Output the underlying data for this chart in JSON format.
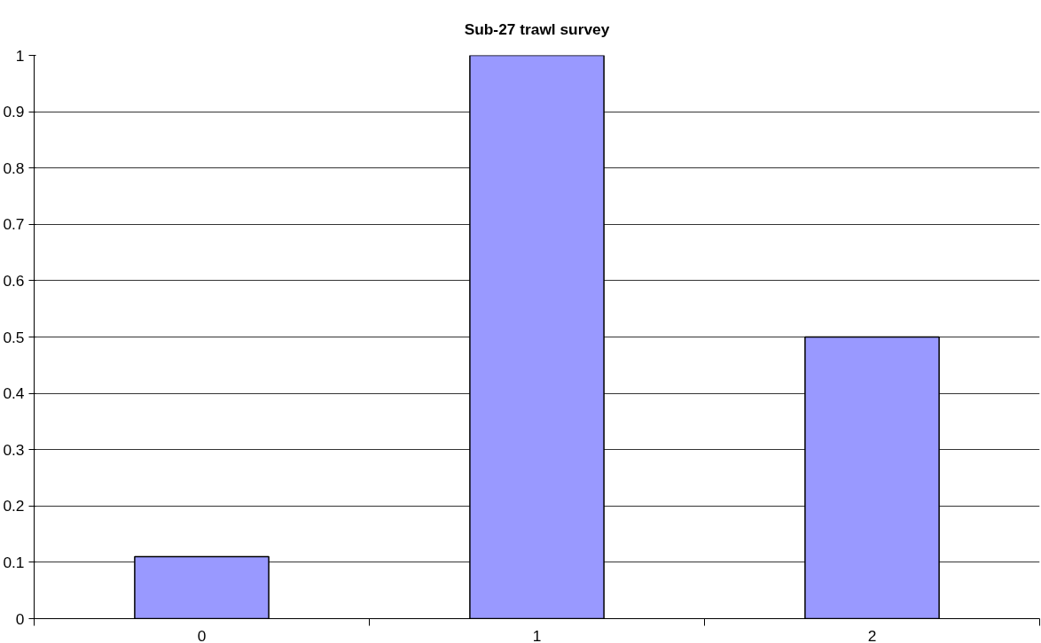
{
  "chart_data": {
    "type": "bar",
    "title": "Sub-27 trawl survey",
    "categories": [
      "0",
      "1",
      "2"
    ],
    "values": [
      0.11,
      1,
      0.5
    ],
    "color": "#9999ff",
    "ylim": [
      0,
      1
    ],
    "yticks": [
      0,
      0.1,
      0.2,
      0.3,
      0.4,
      0.5,
      0.6,
      0.7,
      0.8,
      0.9,
      1
    ],
    "grid": "y"
  }
}
